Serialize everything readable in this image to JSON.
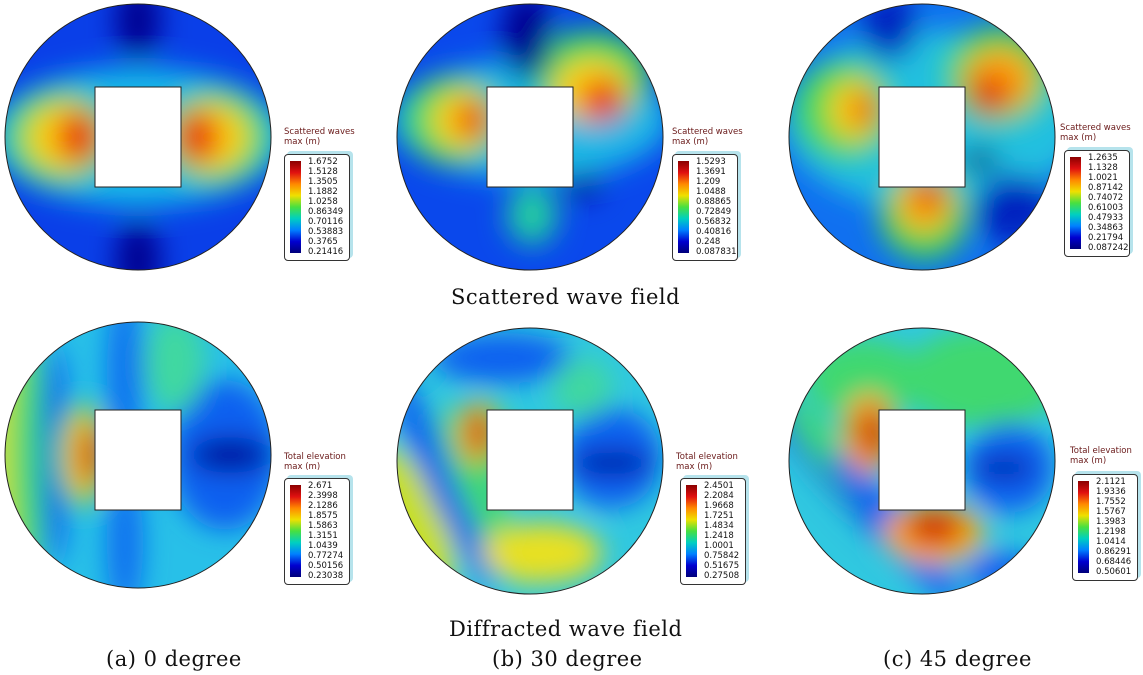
{
  "rows": [
    {
      "caption": "Scattered wave field",
      "panels": [
        {
          "legend_title": "Scattered waves",
          "legend_unit": "max (m)",
          "ticks": [
            "1.6752",
            "1.5128",
            "1.3505",
            "1.1882",
            "1.0258",
            "0.86349",
            "0.70116",
            "0.53883",
            "0.3765",
            "0.21416"
          ]
        },
        {
          "legend_title": "Scattered waves",
          "legend_unit": "max (m)",
          "ticks": [
            "1.5293",
            "1.3691",
            "1.209",
            "1.0488",
            "0.88865",
            "0.72849",
            "0.56832",
            "0.40816",
            "0.248",
            "0.087831"
          ]
        },
        {
          "legend_title": "Scattered waves",
          "legend_unit": "max (m)",
          "ticks": [
            "1.2635",
            "1.1328",
            "1.0021",
            "0.87142",
            "0.74072",
            "0.61003",
            "0.47933",
            "0.34863",
            "0.21794",
            "0.087242"
          ]
        }
      ]
    },
    {
      "caption": "Diffracted wave field",
      "panels": [
        {
          "legend_title": "Total elevation",
          "legend_unit": "max (m)",
          "ticks": [
            "2.671",
            "2.3998",
            "2.1286",
            "1.8575",
            "1.5863",
            "1.3151",
            "1.0439",
            "0.77274",
            "0.50156",
            "0.23038"
          ]
        },
        {
          "legend_title": "Total elevation",
          "legend_unit": "max (m)",
          "ticks": [
            "2.4501",
            "2.2084",
            "1.9668",
            "1.7251",
            "1.4834",
            "1.2418",
            "1.0001",
            "0.75842",
            "0.51675",
            "0.27508"
          ]
        },
        {
          "legend_title": "Total elevation",
          "legend_unit": "max (m)",
          "ticks": [
            "2.1121",
            "1.9336",
            "1.7552",
            "1.5767",
            "1.3983",
            "1.2198",
            "1.0414",
            "0.86291",
            "0.68446",
            "0.50601"
          ]
        }
      ]
    }
  ],
  "column_captions": [
    "(a) 0 degree",
    "(b) 30 degree",
    "(c) 45 degree"
  ],
  "colormap": [
    "#00007a",
    "#0000d0",
    "#0080ff",
    "#00d0c0",
    "#48e040",
    "#f0e000",
    "#ff8800",
    "#e01010",
    "#8b0000"
  ]
}
